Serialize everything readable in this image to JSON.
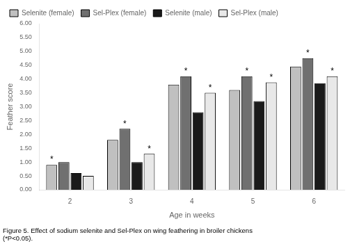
{
  "chart_data": {
    "type": "bar",
    "categories": [
      "2",
      "3",
      "4",
      "5",
      "6"
    ],
    "series": [
      {
        "name": "Selenite (female)",
        "color": "#c0c0c0",
        "values": [
          0.9,
          1.8,
          3.8,
          3.6,
          4.45
        ]
      },
      {
        "name": "Sel-Plex (female)",
        "color": "#707070",
        "values": [
          1.0,
          2.2,
          4.1,
          4.1,
          4.75
        ]
      },
      {
        "name": "Selenite (male)",
        "color": "#1a1a1a",
        "values": [
          0.6,
          1.0,
          2.8,
          3.2,
          3.85
        ]
      },
      {
        "name": "Sel-Plex (male)",
        "color": "#e8e8e8",
        "values": [
          0.5,
          1.3,
          3.5,
          3.88,
          4.1
        ]
      }
    ],
    "xlabel": "Age in weeks",
    "ylabel": "Feather score",
    "ylim": [
      0,
      6.0
    ],
    "yticks": [
      {
        "value": 0.0,
        "label": "0.00"
      },
      {
        "value": 0.5,
        "label": "0.50"
      },
      {
        "value": 1.0,
        "label": "1.00"
      },
      {
        "value": 1.5,
        "label": "1.50"
      },
      {
        "value": 2.0,
        "label": "2.00"
      },
      {
        "value": 2.5,
        "label": "2.50"
      },
      {
        "value": 3.0,
        "label": "3.00"
      },
      {
        "value": 3.5,
        "label": "3.50"
      },
      {
        "value": 4.0,
        "label": "4.00"
      },
      {
        "value": 4.5,
        "label": "4.50"
      },
      {
        "value": 5.0,
        "label": "5.00"
      },
      {
        "value": 5.5,
        "label": "5.50"
      },
      {
        "value": 6.0,
        "label": "6.00"
      }
    ],
    "annotations": [
      {
        "category": "2",
        "series": "Selenite (female)",
        "text": "*"
      },
      {
        "category": "3",
        "series": "Sel-Plex (female)",
        "text": "*"
      },
      {
        "category": "3",
        "series": "Sel-Plex (male)",
        "text": "*"
      },
      {
        "category": "4",
        "series": "Sel-Plex (female)",
        "text": "*"
      },
      {
        "category": "4",
        "series": "Sel-Plex (male)",
        "text": "*"
      },
      {
        "category": "5",
        "series": "Sel-Plex (female)",
        "text": "*"
      },
      {
        "category": "5",
        "series": "Sel-Plex (male)",
        "text": "*"
      },
      {
        "category": "6",
        "series": "Sel-Plex (female)",
        "text": "*"
      },
      {
        "category": "6",
        "series": "Sel-Plex (male)",
        "text": "*"
      }
    ],
    "caption": [
      "Figure 5. Effect of sodium selenite and Sel-Plex on wing feathering in broiler chickens",
      "(*P<0.05)."
    ],
    "legend": "upper left",
    "grid": false
  }
}
